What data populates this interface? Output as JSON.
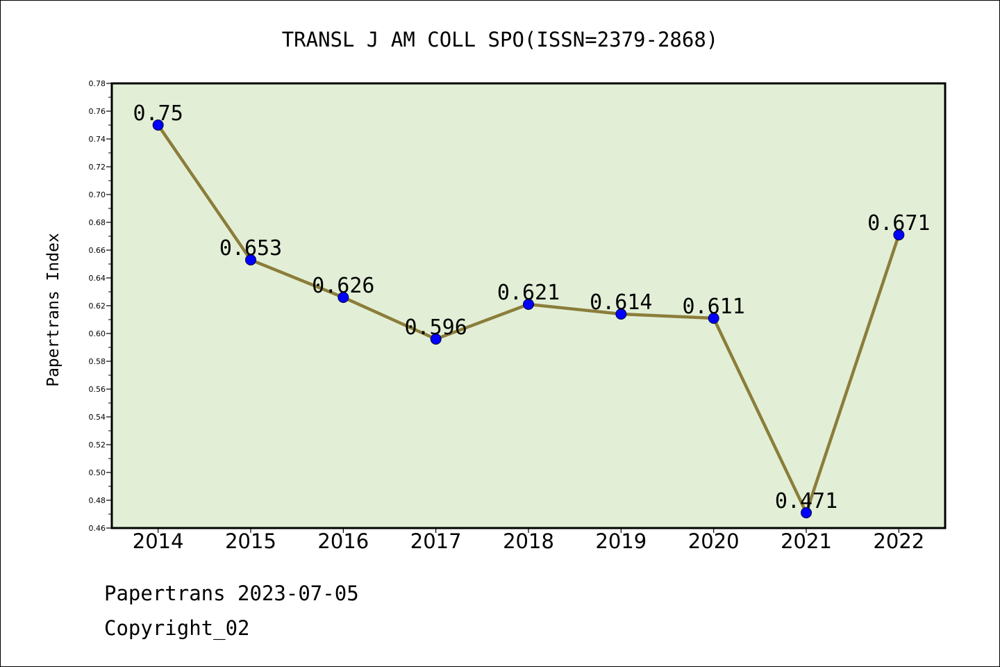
{
  "chart_data": {
    "type": "line",
    "title": "TRANSL J AM COLL SPO(ISSN=2379-2868)",
    "xlabel": "",
    "ylabel": "Papertrans Index",
    "categories": [
      "2014",
      "2015",
      "2016",
      "2017",
      "2018",
      "2019",
      "2020",
      "2021",
      "2022"
    ],
    "series": [
      {
        "values": [
          0.75,
          0.653,
          0.626,
          0.596,
          0.621,
          0.614,
          0.611,
          0.471,
          0.671
        ],
        "data_labels": [
          "0.75",
          "0.653",
          "0.626",
          "0.596",
          "0.621",
          "0.614",
          "0.611",
          "0.471",
          "0.671"
        ],
        "line_color": "#8b7d3a",
        "marker_color": "#0000ff"
      }
    ],
    "ylim": [
      0.46,
      0.78
    ],
    "y_ticks": [
      "0.46",
      "0.48",
      "0.50",
      "0.52",
      "0.54",
      "0.56",
      "0.58",
      "0.60",
      "0.62",
      "0.64",
      "0.66",
      "0.68",
      "0.70",
      "0.72",
      "0.74",
      "0.76",
      "0.78"
    ],
    "plot_background": "#e2efd6",
    "grid": false,
    "legend": "none"
  },
  "footer": {
    "date_line": "Papertrans 2023-07-05",
    "copyright_line": "Copyright_02"
  }
}
